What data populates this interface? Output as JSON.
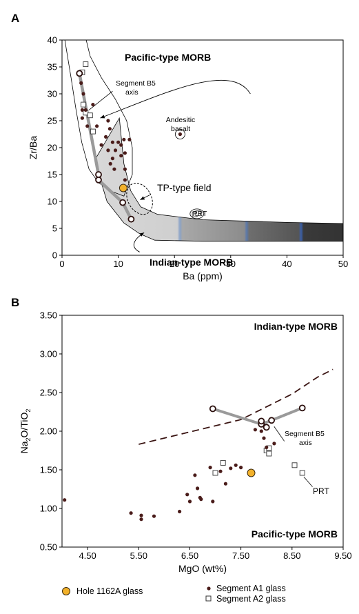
{
  "chart_data": [
    {
      "panel": "A",
      "type": "scatter",
      "xlabel": "Ba (ppm)",
      "ylabel": "Zr/Ba",
      "xlim": [
        0,
        50
      ],
      "ylim": [
        0,
        40
      ],
      "xticks": [
        0,
        10,
        20,
        30,
        40,
        50
      ],
      "yticks": [
        0,
        5,
        10,
        15,
        20,
        25,
        30,
        35,
        40
      ],
      "grid": false,
      "series": [
        {
          "name": "Segment A1 glass",
          "marker": "filled-circle",
          "points": [
            [
              3.4,
              32
            ],
            [
              3.8,
              30
            ],
            [
              3.6,
              27
            ],
            [
              4.2,
              27
            ],
            [
              3.6,
              25.5
            ],
            [
              4.5,
              24
            ],
            [
              5.5,
              28
            ],
            [
              6.2,
              24
            ],
            [
              7,
              20.5
            ],
            [
              7.8,
              22
            ],
            [
              8.2,
              25
            ],
            [
              8.5,
              23.5
            ],
            [
              8.2,
              19.5
            ],
            [
              8.6,
              17
            ],
            [
              9,
              21
            ],
            [
              9,
              18
            ],
            [
              9.5,
              19.5
            ],
            [
              10,
              21
            ],
            [
              10.5,
              20.5
            ],
            [
              10.5,
              18.5
            ],
            [
              11,
              21.5
            ],
            [
              11.2,
              19
            ],
            [
              12,
              21.5
            ],
            [
              11.2,
              16
            ],
            [
              11.2,
              14
            ],
            [
              9.3,
              16
            ],
            [
              21,
              22.5
            ]
          ]
        },
        {
          "name": "Segment A2 glass",
          "marker": "open-square",
          "points": [
            [
              3.6,
              34
            ],
            [
              4.2,
              35.5
            ],
            [
              3.8,
              28
            ],
            [
              4.2,
              26.5
            ],
            [
              5,
              26
            ],
            [
              5.5,
              23
            ],
            [
              23.6,
              7.6
            ],
            [
              24.2,
              7.8
            ]
          ]
        },
        {
          "name": "Segment B5 axis",
          "marker": "open-circle",
          "points": [
            [
              3.1,
              33.8
            ],
            [
              6.5,
              15
            ],
            [
              6.5,
              14
            ],
            [
              10.8,
              9.8
            ],
            [
              12.3,
              6.7
            ]
          ]
        },
        {
          "name": "Hole 1162A glass",
          "marker": "orange-circle",
          "points": [
            [
              10.9,
              12.5
            ]
          ]
        }
      ],
      "annotations": [
        "Pacific-type MORB",
        "Segment B5 axis",
        "Andesitic basalt",
        "TP-type field",
        "PRT",
        "Indian-type MORB"
      ],
      "colors": {
        "field_light": "#d6d6d6",
        "field_dark": "#3d3d3d",
        "accent_blue": "#3b5fa8",
        "hole": "#f2b12a",
        "dot": "#4a1c1a",
        "b5_line": "#999999"
      }
    },
    {
      "panel": "B",
      "type": "scatter",
      "xlabel": "MgO (wt%)",
      "ylabel": "Na2O/TiO2",
      "xlim": [
        4.0,
        9.5
      ],
      "ylim": [
        0.5,
        3.5
      ],
      "xticks": [
        "4.50",
        "5.50",
        "6.50",
        "7.50",
        "8.50",
        "9.50"
      ],
      "yticks": [
        "0.50",
        "1.00",
        "1.50",
        "2.00",
        "2.50",
        "3.00",
        "3.50"
      ],
      "grid": false,
      "series": [
        {
          "name": "Segment A1 glass",
          "marker": "filled-circle",
          "points": [
            [
              4.05,
              1.11
            ],
            [
              5.35,
              0.94
            ],
            [
              5.55,
              0.91
            ],
            [
              5.55,
              0.86
            ],
            [
              5.8,
              0.9
            ],
            [
              6.3,
              0.96
            ],
            [
              6.45,
              1.18
            ],
            [
              6.5,
              1.09
            ],
            [
              6.6,
              1.43
            ],
            [
              6.65,
              1.26
            ],
            [
              6.7,
              1.14
            ],
            [
              6.72,
              1.12
            ],
            [
              6.9,
              1.53
            ],
            [
              6.95,
              1.09
            ],
            [
              7.1,
              1.48
            ],
            [
              7.2,
              1.32
            ],
            [
              7.3,
              1.52
            ],
            [
              7.4,
              1.56
            ],
            [
              7.5,
              1.53
            ],
            [
              7.78,
              2.02
            ],
            [
              7.9,
              2.0
            ],
            [
              7.95,
              1.91
            ],
            [
              8.0,
              1.79
            ],
            [
              8.15,
              1.84
            ]
          ]
        },
        {
          "name": "Segment A2 glass",
          "marker": "open-square",
          "points": [
            [
              7.0,
              1.46
            ],
            [
              7.15,
              1.59
            ],
            [
              8.0,
              1.75
            ],
            [
              8.05,
              1.78
            ],
            [
              8.05,
              1.71
            ],
            [
              8.55,
              1.56
            ],
            [
              8.7,
              1.46
            ]
          ]
        },
        {
          "name": "Segment B5 axis",
          "marker": "open-circle",
          "points": [
            [
              6.95,
              2.29
            ],
            [
              7.9,
              2.09
            ],
            [
              7.9,
              2.13
            ],
            [
              8.0,
              2.05
            ],
            [
              8.1,
              2.14
            ],
            [
              8.7,
              2.3
            ]
          ]
        },
        {
          "name": "Hole 1162A glass",
          "marker": "orange-circle",
          "points": [
            [
              7.7,
              1.46
            ]
          ]
        }
      ],
      "boundary_line": [
        [
          5.5,
          1.83
        ],
        [
          6.5,
          1.99
        ],
        [
          7.5,
          2.15
        ],
        [
          8.5,
          2.48
        ],
        [
          9.0,
          2.7
        ],
        [
          9.3,
          2.8
        ]
      ],
      "annotations": [
        "Indian-type MORB",
        "Segment B5 axis",
        "PRT",
        "Pacific-type MORB"
      ]
    }
  ],
  "text": {
    "panel_a": "A",
    "panel_b": "B",
    "a_xlabel": "Ba (ppm)",
    "a_ylabel": "Zr/Ba",
    "b_xlabel": "MgO (wt%)",
    "b_ylabel_main": "Na",
    "b_ylabel_sub1": "2",
    "b_ylabel_mid": "O/TiO",
    "b_ylabel_sub2": "2",
    "a_pacific": "Pacific-type MORB",
    "a_b5_line1": "Segment B5",
    "a_b5_line2": "axis",
    "a_andesitic_line1": "Andesitic",
    "a_andesitic_line2": "basalt",
    "a_tp": "TP-type field",
    "a_prt": "PRT",
    "a_indian": "Indian-type MORB",
    "b_indian": "Indian-type MORB",
    "b_b5_line1": "Segment B5",
    "b_b5_line2": "axis",
    "b_prt": "PRT",
    "b_pacific": "Pacific-type MORB",
    "legend_hole": "Hole 1162A glass",
    "legend_a1": "Segment A1 glass",
    "legend_a2": "Segment A2 glass"
  }
}
